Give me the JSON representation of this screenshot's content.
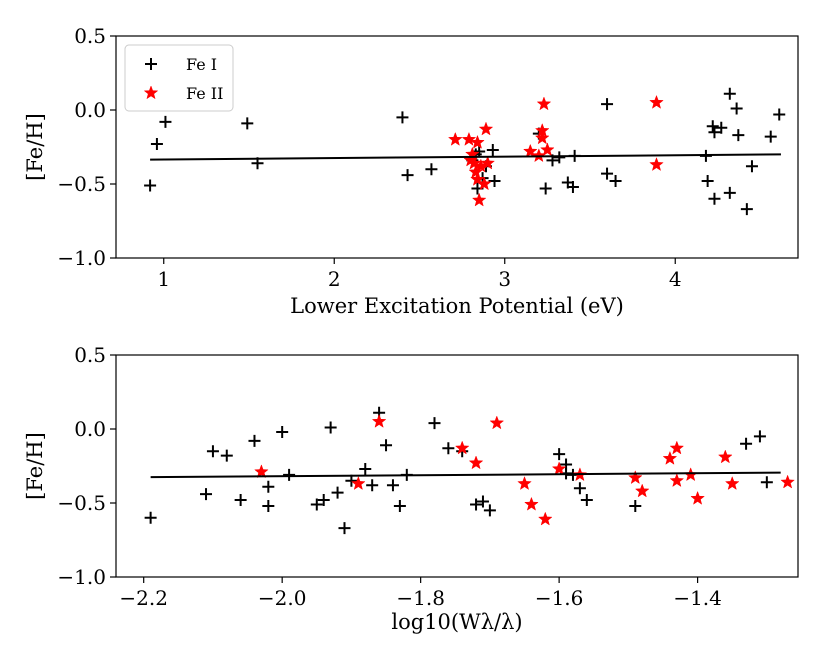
{
  "chart_data": [
    {
      "type": "scatter",
      "xlabel": "Lower Excitation Potential (eV)",
      "ylabel": "[Fe/H]",
      "xlim": [
        0.72,
        4.72
      ],
      "ylim": [
        -1.0,
        0.5
      ],
      "xticks": [
        1,
        2,
        3,
        4
      ],
      "xtick_labels": [
        "1",
        "2",
        "3",
        "4"
      ],
      "yticks": [
        -1.0,
        -0.5,
        0.0,
        0.5
      ],
      "ytick_labels": [
        "−1.0",
        "−0.5",
        "0.0",
        "0.5"
      ],
      "grid": false,
      "legend_position": "top-left",
      "fit_line": {
        "x": [
          0.92,
          4.62
        ],
        "y": [
          -0.335,
          -0.3
        ],
        "color": "#000000"
      },
      "series": [
        {
          "name": "Fe I",
          "marker": "plus",
          "color": "#000000",
          "points": [
            [
              0.92,
              -0.51
            ],
            [
              0.96,
              -0.23
            ],
            [
              1.01,
              -0.08
            ],
            [
              1.49,
              -0.09
            ],
            [
              1.55,
              -0.36
            ],
            [
              2.4,
              -0.05
            ],
            [
              2.43,
              -0.44
            ],
            [
              2.57,
              -0.4
            ],
            [
              2.81,
              -0.34
            ],
            [
              2.83,
              -0.3
            ],
            [
              2.84,
              -0.53
            ],
            [
              2.85,
              -0.28
            ],
            [
              2.87,
              -0.46
            ],
            [
              2.89,
              -0.38
            ],
            [
              2.93,
              -0.27
            ],
            [
              2.94,
              -0.48
            ],
            [
              3.2,
              -0.16
            ],
            [
              3.24,
              -0.53
            ],
            [
              3.28,
              -0.34
            ],
            [
              3.32,
              -0.32
            ],
            [
              3.37,
              -0.49
            ],
            [
              3.4,
              -0.52
            ],
            [
              3.41,
              -0.31
            ],
            [
              3.6,
              0.04
            ],
            [
              3.6,
              -0.43
            ],
            [
              3.65,
              -0.48
            ],
            [
              4.18,
              -0.31
            ],
            [
              4.19,
              -0.48
            ],
            [
              4.22,
              -0.11
            ],
            [
              4.23,
              -0.15
            ],
            [
              4.23,
              -0.6
            ],
            [
              4.27,
              -0.12
            ],
            [
              4.32,
              -0.56
            ],
            [
              4.32,
              0.11
            ],
            [
              4.36,
              0.01
            ],
            [
              4.37,
              -0.17
            ],
            [
              4.42,
              -0.67
            ],
            [
              4.45,
              -0.38
            ],
            [
              4.56,
              -0.18
            ],
            [
              4.61,
              -0.03
            ]
          ]
        },
        {
          "name": "Fe II",
          "marker": "star",
          "color": "#ff0000",
          "points": [
            [
              2.71,
              -0.2
            ],
            [
              2.79,
              -0.2
            ],
            [
              2.8,
              -0.34
            ],
            [
              2.81,
              -0.3
            ],
            [
              2.82,
              -0.36
            ],
            [
              2.83,
              -0.42
            ],
            [
              2.84,
              -0.22
            ],
            [
              2.84,
              -0.47
            ],
            [
              2.85,
              -0.61
            ],
            [
              2.86,
              -0.38
            ],
            [
              2.88,
              -0.5
            ],
            [
              2.89,
              -0.13
            ],
            [
              2.9,
              -0.36
            ],
            [
              3.15,
              -0.28
            ],
            [
              3.2,
              -0.31
            ],
            [
              3.22,
              -0.14
            ],
            [
              3.22,
              -0.19
            ],
            [
              3.23,
              0.04
            ],
            [
              3.25,
              -0.27
            ],
            [
              3.89,
              0.05
            ],
            [
              3.89,
              -0.37
            ]
          ]
        }
      ]
    },
    {
      "type": "scatter",
      "xlabel": "log10(Wλ/λ)",
      "ylabel": "[Fe/H]",
      "xlim": [
        -2.24,
        -1.255
      ],
      "ylim": [
        -1.0,
        0.5
      ],
      "xticks": [
        -2.2,
        -2.0,
        -1.8,
        -1.6,
        -1.4
      ],
      "xtick_labels": [
        "−2.2",
        "−2.0",
        "−1.8",
        "−1.6",
        "−1.4"
      ],
      "yticks": [
        -1.0,
        -0.5,
        0.0,
        0.5
      ],
      "ytick_labels": [
        "−1.0",
        "−0.5",
        "0.0",
        "0.5"
      ],
      "grid": false,
      "fit_line": {
        "x": [
          -2.19,
          -1.28
        ],
        "y": [
          -0.325,
          -0.295
        ],
        "color": "#000000"
      },
      "series": [
        {
          "marker": "plus",
          "color": "#000000",
          "points": [
            [
              -2.19,
              -0.6
            ],
            [
              -2.11,
              -0.44
            ],
            [
              -2.1,
              -0.15
            ],
            [
              -2.08,
              -0.18
            ],
            [
              -2.06,
              -0.48
            ],
            [
              -2.04,
              -0.08
            ],
            [
              -2.02,
              -0.52
            ],
            [
              -2.02,
              -0.39
            ],
            [
              -2.0,
              -0.02
            ],
            [
              -1.99,
              -0.31
            ],
            [
              -1.95,
              -0.51
            ],
            [
              -1.94,
              -0.48
            ],
            [
              -1.93,
              0.01
            ],
            [
              -1.92,
              -0.43
            ],
            [
              -1.91,
              -0.67
            ],
            [
              -1.9,
              -0.35
            ],
            [
              -1.88,
              -0.27
            ],
            [
              -1.87,
              -0.38
            ],
            [
              -1.86,
              0.11
            ],
            [
              -1.85,
              -0.11
            ],
            [
              -1.84,
              -0.38
            ],
            [
              -1.83,
              -0.52
            ],
            [
              -1.82,
              -0.31
            ],
            [
              -1.78,
              0.04
            ],
            [
              -1.76,
              -0.13
            ],
            [
              -1.74,
              -0.15
            ],
            [
              -1.72,
              -0.51
            ],
            [
              -1.71,
              -0.49
            ],
            [
              -1.7,
              -0.55
            ],
            [
              -1.6,
              -0.17
            ],
            [
              -1.59,
              -0.24
            ],
            [
              -1.59,
              -0.3
            ],
            [
              -1.58,
              -0.31
            ],
            [
              -1.57,
              -0.4
            ],
            [
              -1.56,
              -0.48
            ],
            [
              -1.49,
              -0.52
            ],
            [
              -1.33,
              -0.1
            ],
            [
              -1.31,
              -0.05
            ],
            [
              -1.3,
              -0.36
            ]
          ]
        },
        {
          "marker": "star",
          "color": "#ff0000",
          "points": [
            [
              -2.03,
              -0.29
            ],
            [
              -1.89,
              -0.37
            ],
            [
              -1.86,
              0.05
            ],
            [
              -1.74,
              -0.13
            ],
            [
              -1.72,
              -0.23
            ],
            [
              -1.69,
              0.04
            ],
            [
              -1.65,
              -0.37
            ],
            [
              -1.64,
              -0.51
            ],
            [
              -1.62,
              -0.61
            ],
            [
              -1.6,
              -0.27
            ],
            [
              -1.57,
              -0.31
            ],
            [
              -1.49,
              -0.33
            ],
            [
              -1.48,
              -0.42
            ],
            [
              -1.44,
              -0.2
            ],
            [
              -1.43,
              -0.13
            ],
            [
              -1.43,
              -0.35
            ],
            [
              -1.41,
              -0.31
            ],
            [
              -1.4,
              -0.47
            ],
            [
              -1.36,
              -0.19
            ],
            [
              -1.35,
              -0.37
            ],
            [
              -1.27,
              -0.36
            ]
          ]
        }
      ]
    }
  ]
}
